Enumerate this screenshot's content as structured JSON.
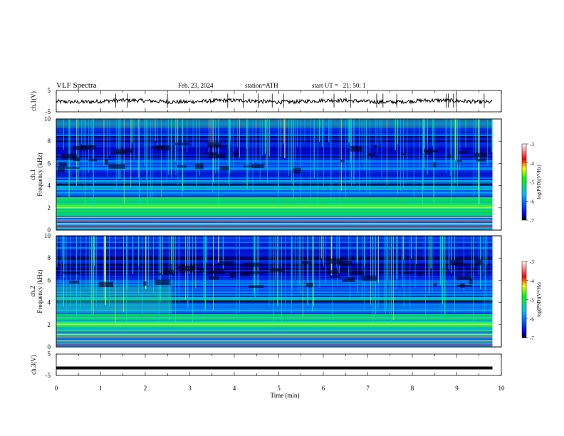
{
  "header": {
    "title": "VLF Spectra",
    "date": "Feb. 23, 2024",
    "station": "station=ATH",
    "start_ut": "start UT =   21: 50: 1"
  },
  "chart_data": {
    "type": "heatmap",
    "x_axis": {
      "label": "Time (min)",
      "range": [
        0,
        10
      ],
      "ticks": [
        "0",
        "1",
        "2",
        "3",
        "4",
        "5",
        "6",
        "7",
        "8",
        "9",
        "10"
      ]
    },
    "panels": [
      {
        "id": "ch1-waveform",
        "type": "line",
        "ylabel": "ch.1(V)",
        "ylim": [
          -5,
          5
        ],
        "yticks": [
          "5",
          "-5"
        ],
        "mean_level": 0,
        "data_end_min": 9.8
      },
      {
        "id": "ch1-spectrogram",
        "type": "heatmap",
        "ylabel": "ch.1 Frequency (kHz)",
        "ylim": [
          0,
          10
        ],
        "yticks": [
          "0",
          "2",
          "4",
          "6",
          "8",
          "10"
        ],
        "data_end_min": 9.8
      },
      {
        "id": "ch2-spectrogram",
        "type": "heatmap",
        "ylabel": "ch.2 Frequency (kHz)",
        "ylim": [
          0,
          10
        ],
        "yticks": [
          "0",
          "2",
          "4",
          "6",
          "8",
          "10"
        ],
        "data_end_min": 9.8
      },
      {
        "id": "ch3-waveform",
        "type": "line",
        "ylabel": "ch.3(V)",
        "ylim": [
          -5,
          5
        ],
        "yticks": [
          "5",
          "-5"
        ],
        "mean_level": -1.5,
        "data_end_min": 9.8
      }
    ],
    "colorbar": {
      "label": "log(PSD)(V²/Hz)",
      "range": [
        -7,
        -3
      ],
      "ticks": [
        "-3",
        "-4",
        "-5",
        "-6",
        "-7"
      ],
      "colors": [
        "#000000",
        "#0000ff",
        "#00ffff",
        "#00ff00",
        "#ffff00",
        "#ff0000",
        "#ffffff"
      ]
    }
  }
}
